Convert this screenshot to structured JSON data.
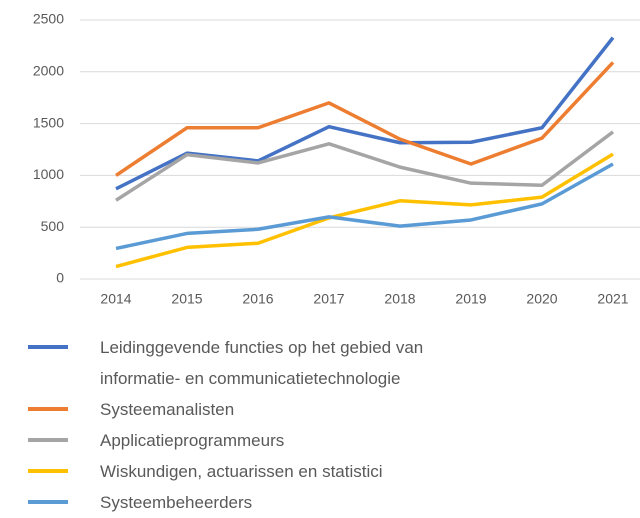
{
  "chart_data": {
    "type": "line",
    "x": [
      "2014",
      "2015",
      "2016",
      "2017",
      "2018",
      "2019",
      "2020",
      "2021"
    ],
    "series": [
      {
        "name": "Leidinggevende functies op het gebied van informatie- en communicatietechnologie",
        "color": "#4472c4",
        "values": [
          870,
          1215,
          1140,
          1470,
          1315,
          1320,
          1460,
          2330
        ]
      },
      {
        "name": "Systeemanalisten",
        "color": "#ed7d31",
        "values": [
          1000,
          1460,
          1460,
          1700,
          1350,
          1110,
          1360,
          2090
        ]
      },
      {
        "name": "Applicatieprogrammeurs",
        "color": "#a5a5a5",
        "values": [
          760,
          1200,
          1120,
          1305,
          1080,
          925,
          905,
          1420
        ]
      },
      {
        "name": "Wiskundigen, actuarissen en statistici",
        "color": "#ffc000",
        "values": [
          120,
          305,
          345,
          590,
          755,
          715,
          790,
          1205
        ]
      },
      {
        "name": "Systeembeheerders",
        "color": "#5b9bd5",
        "values": [
          295,
          440,
          480,
          600,
          510,
          570,
          725,
          1110
        ]
      }
    ],
    "ylim": [
      0,
      2500
    ],
    "yticks": [
      0,
      500,
      1000,
      1500,
      2000,
      2500
    ],
    "grid": true
  }
}
